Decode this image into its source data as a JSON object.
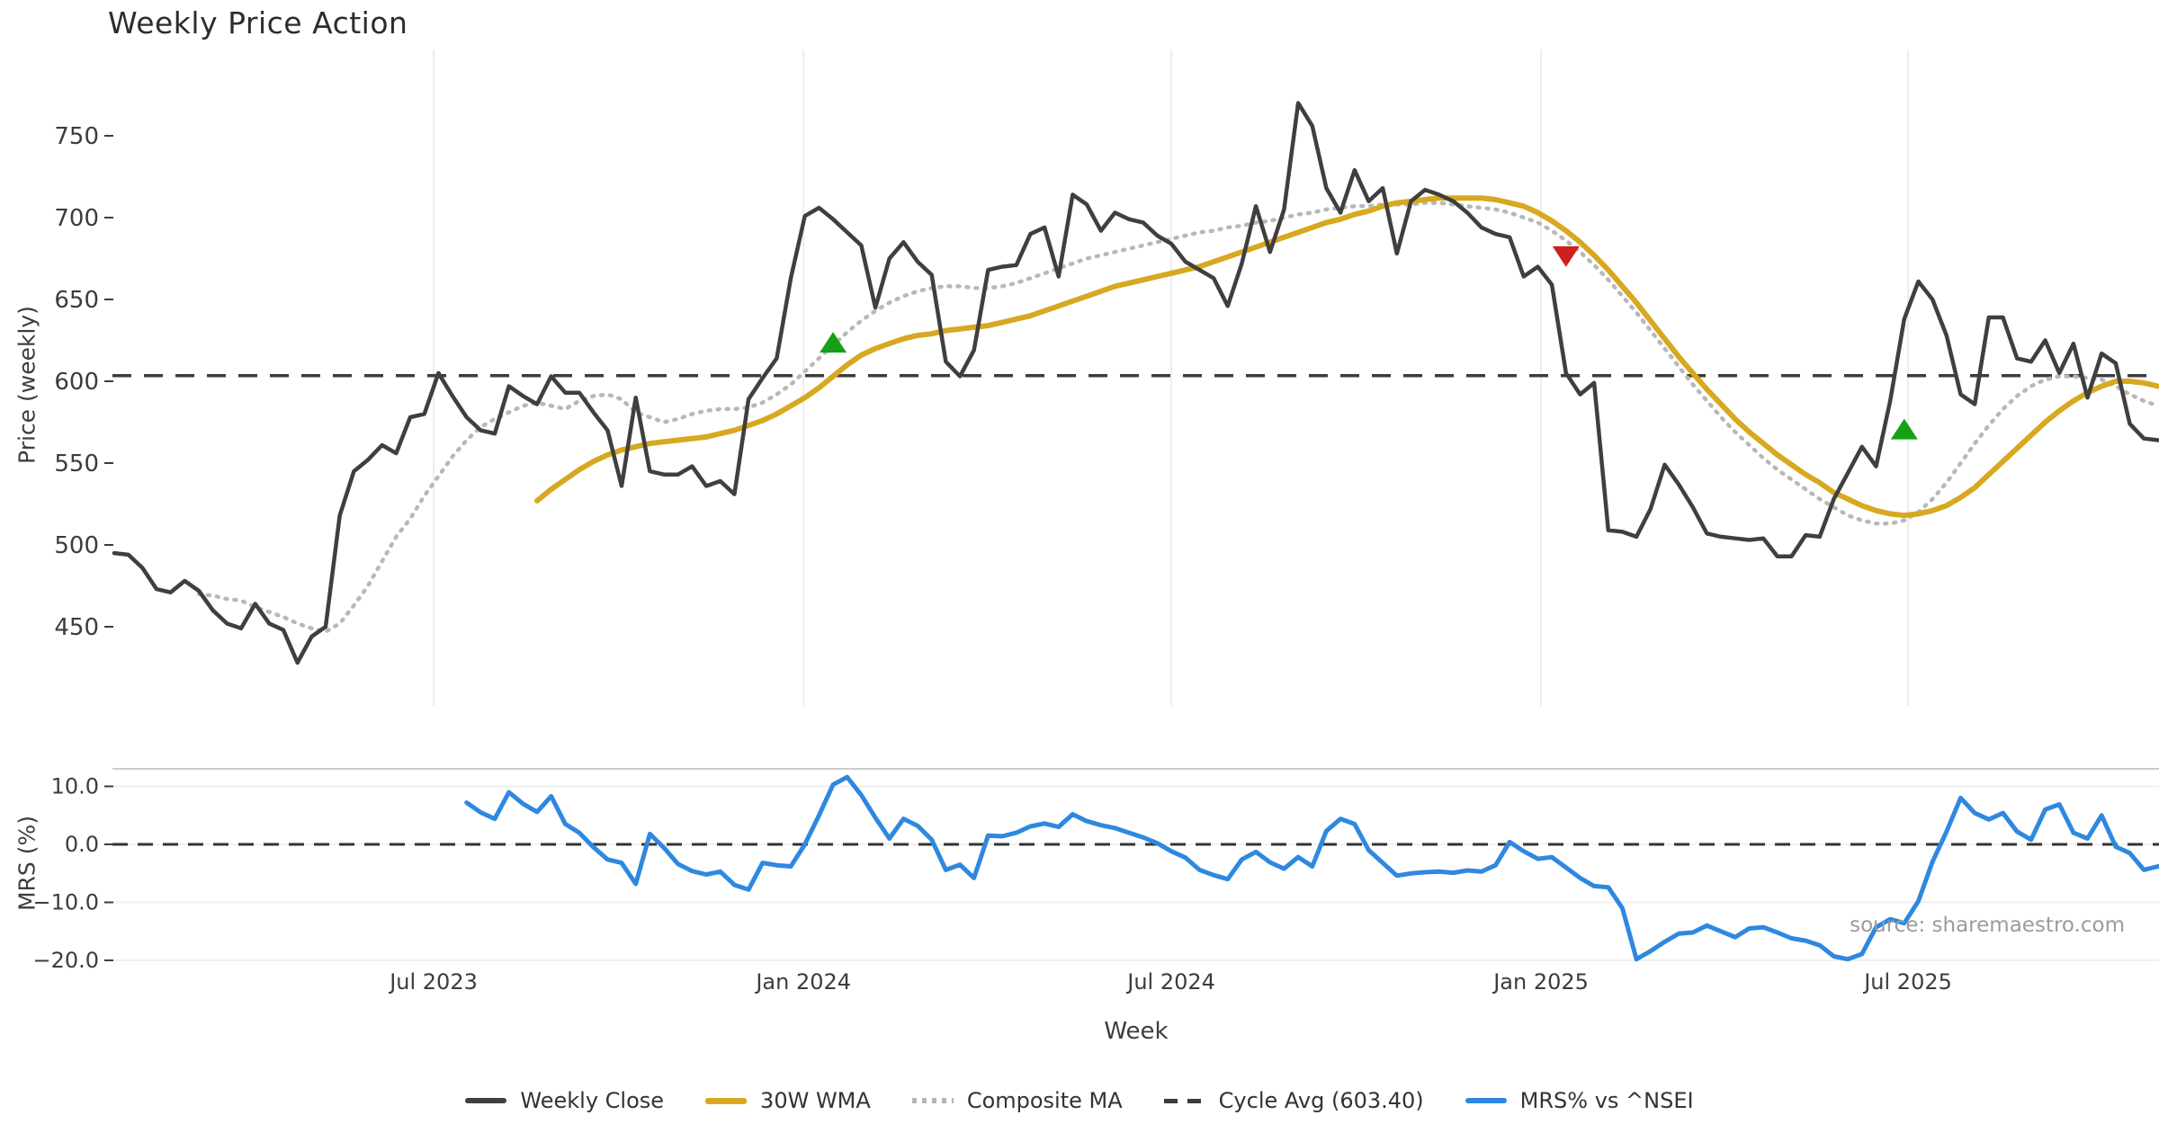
{
  "title": "Weekly Price Action",
  "xlabel": "Week",
  "source": "source: sharemaestro.com",
  "panel1": {
    "ylabel": "Price (weekly)"
  },
  "panel2": {
    "ylabel": "MRS (%)"
  },
  "legend": {
    "items": [
      {
        "label": "Weekly Close",
        "color": "#3f3f3f",
        "style": "solid"
      },
      {
        "label": "30W WMA",
        "color": "#d7a820",
        "style": "solid"
      },
      {
        "label": "Composite MA",
        "color": "#b5b5b5",
        "style": "dotted"
      },
      {
        "label": "Cycle Avg (603.40)",
        "color": "#3c3c3c",
        "style": "dashed"
      },
      {
        "label": "MRS% vs ^NSEI",
        "color": "#2f88e0",
        "style": "solid"
      }
    ]
  },
  "chart_data": [
    {
      "type": "line",
      "panel": "price",
      "title": "Weekly Price Action",
      "ylabel": "Price (weekly)",
      "yticks": [
        750,
        700,
        650,
        600,
        550,
        500,
        450
      ],
      "ylim": [
        400,
        805
      ],
      "grid": "vertical-only",
      "cycle_avg": 603.4,
      "x_ticks": [
        {
          "label": "Jul 2023",
          "week": 22.66
        },
        {
          "label": "Jan 2024",
          "week": 48.9
        },
        {
          "label": "Jul 2024",
          "week": 75.0
        },
        {
          "label": "Jan 2025",
          "week": 101.23
        },
        {
          "label": "Jul 2025",
          "week": 127.27
        }
      ],
      "series": [
        {
          "name": "Weekly Close",
          "color": "#3f3f3f",
          "width": 4.5,
          "dash": "",
          "start_week": 0,
          "values": [
            495,
            494,
            486,
            473,
            471,
            478,
            472,
            460,
            452,
            449,
            464,
            452,
            448,
            428,
            444,
            450,
            518,
            545,
            552,
            561,
            556,
            578,
            580,
            605,
            591,
            578,
            570,
            568,
            597,
            591,
            586,
            603,
            593,
            593,
            581,
            570,
            536,
            590,
            545,
            543,
            543,
            548,
            536,
            539,
            531,
            589,
            602,
            614,
            663,
            701,
            706,
            699,
            691,
            683,
            645,
            675,
            685,
            673,
            665,
            612,
            603,
            619,
            668,
            670,
            671,
            690,
            694,
            664,
            714,
            708,
            692,
            703,
            699,
            697,
            689,
            684,
            673,
            668,
            663,
            646,
            672,
            707,
            679,
            705,
            770,
            756,
            718,
            703,
            729,
            710,
            718,
            678,
            710,
            717,
            714,
            710,
            703,
            694,
            690,
            688,
            664,
            670,
            659,
            605,
            592,
            599,
            509,
            508,
            505,
            522,
            549,
            537,
            523,
            507,
            505,
            504,
            503,
            504,
            493,
            493,
            506,
            505,
            528,
            544,
            560,
            548,
            588,
            638,
            661,
            650,
            628,
            592,
            586,
            639,
            639,
            614,
            612,
            625,
            605,
            623,
            590,
            617,
            611,
            574,
            565,
            564
          ]
        },
        {
          "name": "30W WMA",
          "color": "#d7a820",
          "width": 6,
          "dash": "",
          "start_week": 30,
          "values": [
            527,
            534,
            540,
            546,
            551,
            555,
            558,
            560,
            562,
            563,
            564,
            565,
            566,
            568,
            570,
            573,
            576,
            580,
            585,
            590,
            596,
            603,
            610,
            616,
            620,
            623,
            626,
            628,
            629,
            631,
            632,
            633,
            634,
            636,
            638,
            640,
            643,
            646,
            649,
            652,
            655,
            658,
            660,
            662,
            664,
            666,
            668,
            670,
            673,
            676,
            679,
            682,
            685,
            688,
            691,
            694,
            697,
            699,
            702,
            704,
            707,
            709,
            710,
            711,
            712,
            712,
            712,
            712,
            711,
            709,
            707,
            703,
            698,
            692,
            685,
            677,
            668,
            658,
            648,
            637,
            626,
            615,
            605,
            595,
            586,
            577,
            569,
            562,
            555,
            549,
            543,
            538,
            532,
            528,
            524,
            521,
            519,
            518,
            519,
            521,
            524,
            529,
            535,
            543,
            551,
            559,
            567,
            575,
            582,
            588,
            593,
            597,
            600,
            600,
            599,
            597
          ]
        },
        {
          "name": "Composite MA",
          "color": "#b8b8b8",
          "width": 4.5,
          "dash": "2 8",
          "start_week": 6,
          "values": [
            470,
            469,
            467,
            466,
            462,
            459,
            456,
            452,
            449,
            447,
            452,
            463,
            475,
            490,
            505,
            516,
            530,
            542,
            554,
            564,
            572,
            577,
            581,
            585,
            587,
            585,
            583,
            588,
            591,
            592,
            589,
            581,
            578,
            575,
            577,
            580,
            582,
            583,
            583,
            584,
            587,
            592,
            598,
            606,
            614,
            622,
            630,
            637,
            643,
            648,
            652,
            655,
            657,
            658,
            658,
            657,
            657,
            658,
            660,
            663,
            666,
            669,
            672,
            675,
            677,
            679,
            681,
            683,
            685,
            687,
            689,
            691,
            692,
            694,
            695,
            697,
            698,
            700,
            702,
            703,
            705,
            706,
            707,
            707,
            708,
            708,
            708,
            709,
            709,
            708,
            707,
            706,
            705,
            703,
            700,
            697,
            692,
            686,
            679,
            671,
            662,
            652,
            642,
            631,
            620,
            609,
            598,
            588,
            578,
            569,
            561,
            553,
            546,
            540,
            534,
            528,
            523,
            518,
            515,
            513,
            513,
            515,
            520,
            528,
            538,
            550,
            562,
            573,
            583,
            591,
            597,
            601,
            603,
            603,
            602,
            601,
            597,
            592,
            588,
            585
          ]
        }
      ],
      "markers": [
        {
          "week": 51,
          "value": 623,
          "dir": "up",
          "color": "#16a016"
        },
        {
          "week": 103,
          "value": 677,
          "dir": "down",
          "color": "#d01f1f"
        },
        {
          "week": 127,
          "value": 570,
          "dir": "up",
          "color": "#16a016"
        }
      ]
    },
    {
      "type": "line",
      "panel": "mrs",
      "ylabel": "MRS (%)",
      "yticks": [
        10.0,
        0.0,
        -10.0,
        -20.0
      ],
      "ytick_labels": [
        "10.0",
        "0.0",
        "−10.0",
        "−20.0"
      ],
      "ylim": [
        -23,
        13
      ],
      "zero_line": 0,
      "series": [
        {
          "name": "MRS% vs ^NSEI",
          "color": "#2f88e0",
          "width": 5,
          "dash": "",
          "start_week": 25,
          "values": [
            7.2,
            5.5,
            4.4,
            9.0,
            7.0,
            5.6,
            8.3,
            3.5,
            2.0,
            -0.5,
            -2.6,
            -3.2,
            -6.8,
            1.8,
            -0.6,
            -3.4,
            -4.6,
            -5.2,
            -4.7,
            -7.0,
            -7.8,
            -3.2,
            -3.6,
            -3.8,
            0.0,
            5.0,
            10.3,
            11.6,
            8.5,
            4.6,
            1.0,
            4.4,
            3.2,
            0.8,
            -4.4,
            -3.5,
            -5.8,
            1.5,
            1.4,
            2.0,
            3.1,
            3.6,
            3.0,
            5.2,
            4.0,
            3.3,
            2.8,
            2.0,
            1.2,
            0.2,
            -1.2,
            -2.3,
            -4.4,
            -5.3,
            -6.0,
            -2.6,
            -1.3,
            -3.1,
            -4.2,
            -2.2,
            -3.8,
            2.3,
            4.4,
            3.5,
            -1.0,
            -3.2,
            -5.4,
            -5.0,
            -4.8,
            -4.7,
            -4.9,
            -4.5,
            -4.7,
            -3.6,
            0.4,
            -1.2,
            -2.5,
            -2.2,
            -4.0,
            -5.8,
            -7.2,
            -7.4,
            -11.0,
            -19.8,
            -18.4,
            -16.8,
            -15.4,
            -15.2,
            -14.0,
            -15.0,
            -16.0,
            -14.5,
            -14.3,
            -15.2,
            -16.2,
            -16.6,
            -17.4,
            -19.3,
            -19.8,
            -18.9,
            -14.3,
            -12.9,
            -13.6,
            -9.8,
            -3.0,
            2.2,
            8.0,
            5.4,
            4.3,
            5.4,
            2.2,
            0.8,
            6.0,
            6.9,
            2.0,
            1.0,
            5.0,
            -0.4,
            -1.5,
            -4.4,
            -3.8
          ]
        }
      ]
    }
  ]
}
